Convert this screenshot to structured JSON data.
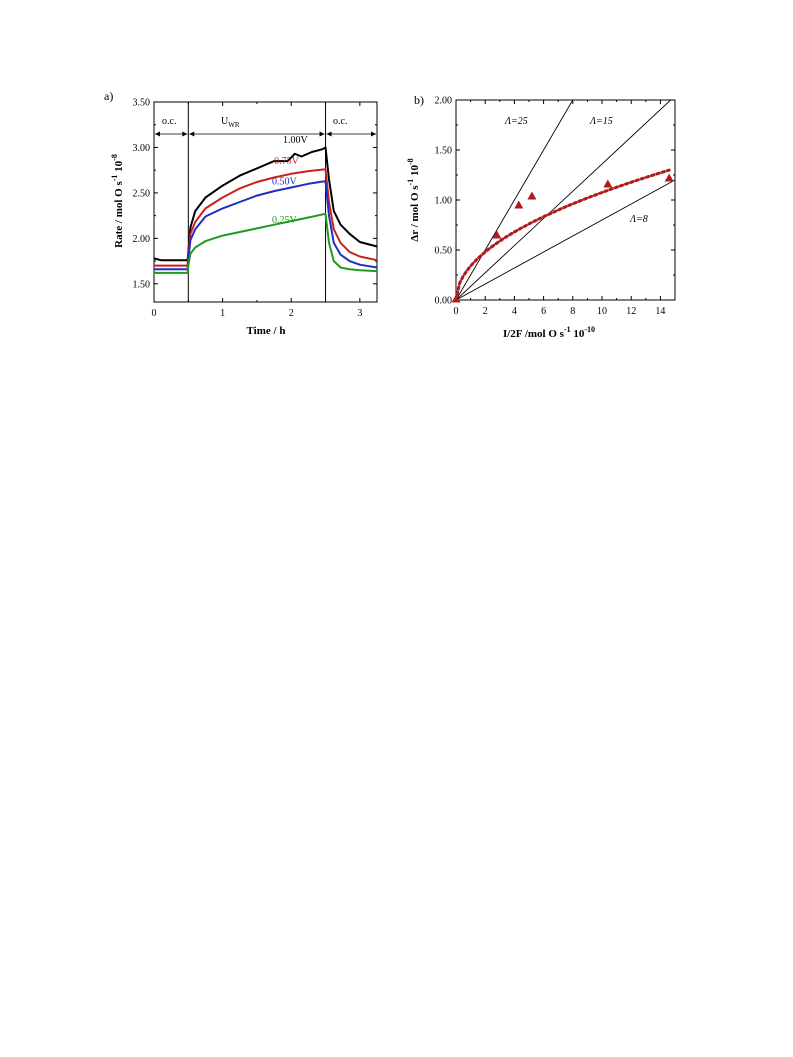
{
  "panel_a": {
    "label": "a)",
    "xlabel": "Time / h",
    "ylabel_main": "Rate / mol O s",
    "ylabel_sup": "-1",
    "ylabel_tail": " 10",
    "ylabel_exp": "-8",
    "region_oc_left": "o.c.",
    "region_uwr_main": "U",
    "region_uwr_sub": "WR",
    "region_oc_right": "o.c."
  },
  "panel_b": {
    "label": "b)",
    "xlabel_main": "I/2F /mol O s",
    "xlabel_sup": "-1",
    "xlabel_tail": " 10",
    "xlabel_exp": "-10",
    "ylabel_main": "Δr / mol O s",
    "ylabel_sup": "-1",
    "ylabel_tail": " 10",
    "ylabel_exp": "-8",
    "lambda_25": "Λ=25",
    "lambda_15": "Λ=15",
    "lambda_8": "Λ=8"
  },
  "chart_data": [
    {
      "id": "a",
      "type": "line",
      "xlabel": "Time / h",
      "ylabel": "Rate / mol O s-1 10-8",
      "xlim": [
        0,
        3.25
      ],
      "ylim": [
        1.3,
        3.5
      ],
      "xticks": [
        0,
        1,
        2,
        3
      ],
      "yticks": [
        1.5,
        2.0,
        2.5,
        3.0,
        3.5
      ],
      "ytick_labels": [
        "1.50",
        "2.00",
        "2.50",
        "3.00",
        "3.50"
      ],
      "xtick_labels": [
        "0",
        "1",
        "2",
        "3"
      ],
      "vlines": [
        0.5,
        2.5
      ],
      "regions": [
        "o.c.",
        "UWR",
        "o.c."
      ],
      "series": [
        {
          "name": "1.00V",
          "color": "#000000",
          "x": [
            0,
            0.1,
            0.3,
            0.49,
            0.5,
            0.53,
            0.6,
            0.75,
            1.0,
            1.25,
            1.5,
            1.75,
            1.95,
            2.05,
            2.15,
            2.3,
            2.45,
            2.5,
            2.55,
            2.62,
            2.72,
            2.85,
            3.0,
            3.25
          ],
          "y": [
            1.78,
            1.76,
            1.76,
            1.76,
            1.85,
            2.12,
            2.3,
            2.45,
            2.58,
            2.69,
            2.77,
            2.85,
            2.85,
            2.93,
            2.9,
            2.95,
            2.98,
            3.0,
            2.65,
            2.3,
            2.15,
            2.05,
            1.96,
            1.91
          ]
        },
        {
          "name": "0.75V",
          "color": "#cc1f1f",
          "x": [
            0,
            0.2,
            0.49,
            0.5,
            0.53,
            0.6,
            0.75,
            1.0,
            1.25,
            1.5,
            1.75,
            2.0,
            2.25,
            2.5,
            2.55,
            2.62,
            2.72,
            2.85,
            3.0,
            3.25
          ],
          "y": [
            1.7,
            1.7,
            1.7,
            1.8,
            2.05,
            2.18,
            2.33,
            2.45,
            2.55,
            2.62,
            2.67,
            2.71,
            2.74,
            2.76,
            2.4,
            2.1,
            1.95,
            1.85,
            1.8,
            1.76
          ]
        },
        {
          "name": "0.50V",
          "color": "#1f2fbf",
          "x": [
            0,
            0.2,
            0.49,
            0.5,
            0.53,
            0.6,
            0.75,
            1.0,
            1.25,
            1.5,
            1.75,
            2.0,
            2.25,
            2.5,
            2.55,
            2.62,
            2.72,
            2.85,
            3.0,
            3.25
          ],
          "y": [
            1.66,
            1.66,
            1.66,
            1.75,
            1.98,
            2.1,
            2.24,
            2.33,
            2.4,
            2.47,
            2.52,
            2.56,
            2.6,
            2.63,
            2.25,
            1.95,
            1.82,
            1.75,
            1.71,
            1.68
          ]
        },
        {
          "name": "0.25V",
          "color": "#1f9a1f",
          "x": [
            0,
            0.2,
            0.49,
            0.5,
            0.53,
            0.6,
            0.75,
            1.0,
            1.25,
            1.5,
            1.75,
            2.0,
            2.25,
            2.5,
            2.55,
            2.62,
            2.72,
            2.85,
            3.0,
            3.25
          ],
          "y": [
            1.62,
            1.62,
            1.62,
            1.7,
            1.83,
            1.9,
            1.97,
            2.03,
            2.07,
            2.11,
            2.15,
            2.19,
            2.23,
            2.27,
            1.95,
            1.75,
            1.68,
            1.66,
            1.65,
            1.64
          ]
        }
      ]
    },
    {
      "id": "b",
      "type": "scatter",
      "xlabel": "I/2F /mol O s-1 10-10",
      "ylabel": "Δr / mol O s-1 10-8",
      "xlim": [
        0,
        15
      ],
      "ylim": [
        0,
        2.0
      ],
      "xticks": [
        0,
        2,
        4,
        6,
        8,
        10,
        12,
        14
      ],
      "xtick_labels": [
        "0",
        "2",
        "4",
        "6",
        "8",
        "10",
        "12",
        "14"
      ],
      "yticks": [
        0,
        0.5,
        1.0,
        1.5,
        2.0
      ],
      "ytick_labels": [
        "0.00",
        "0.50",
        "1.00",
        "1.50",
        "2.00"
      ],
      "points": {
        "color": "#b01c1c",
        "x": [
          0,
          2.8,
          4.3,
          5.2,
          10.4,
          14.6
        ],
        "y": [
          0.01,
          0.65,
          0.95,
          1.04,
          1.16,
          1.22
        ]
      },
      "lines": [
        {
          "name": "Λ=25",
          "slope": 0.25
        },
        {
          "name": "Λ=15",
          "slope": 0.15
        },
        {
          "name": "Λ=8",
          "slope": 0.08
        }
      ],
      "fit": {
        "color": "#b01c1c",
        "style": "dotted",
        "form": "sqrt",
        "coef": 0.34
      }
    }
  ]
}
